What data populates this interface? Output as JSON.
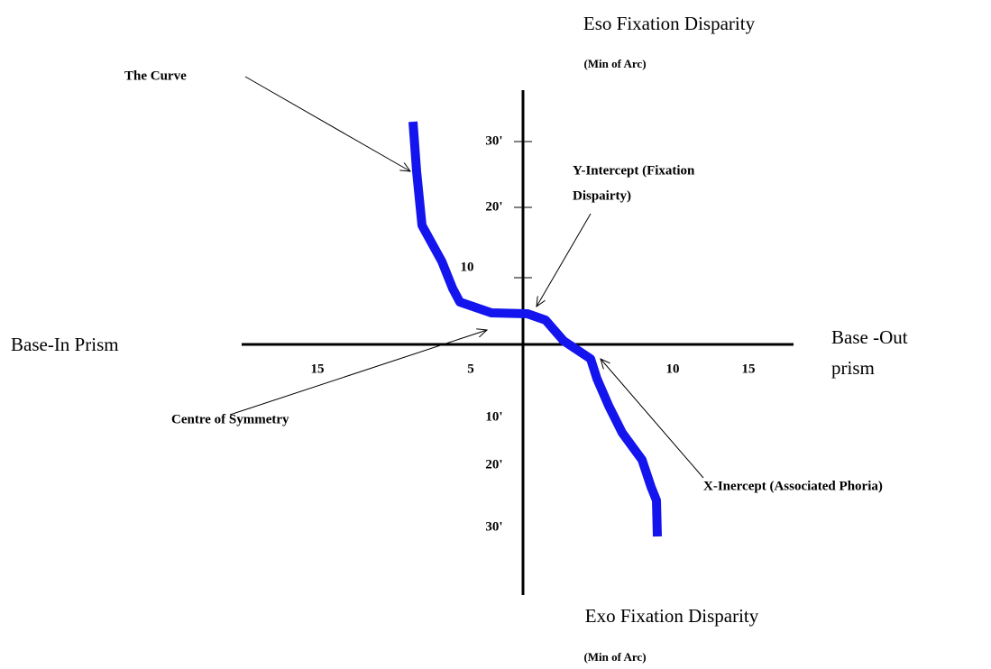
{
  "title_top": "Eso Fixation Disparity",
  "unit_top": "(Min of Arc)",
  "title_bottom": "Exo Fixation Disparity",
  "unit_bottom": "(Min of Arc)",
  "left_label": "Base-In Prism",
  "right_label": [
    "Base -Out",
    "prism"
  ],
  "x_tick_labels": [
    "15",
    "5",
    "10",
    "15"
  ],
  "y_tick_labels": [
    "30'",
    "20'",
    "10",
    "10'",
    "20'",
    "30'"
  ],
  "annotations": {
    "curve": "The Curve",
    "y_intercept": [
      "Y-Intercept (Fixation",
      "Dispairty)"
    ],
    "centre": "Centre of Symmetry",
    "x_intercept": "X-Inercept (Associated Phoria)"
  }
}
